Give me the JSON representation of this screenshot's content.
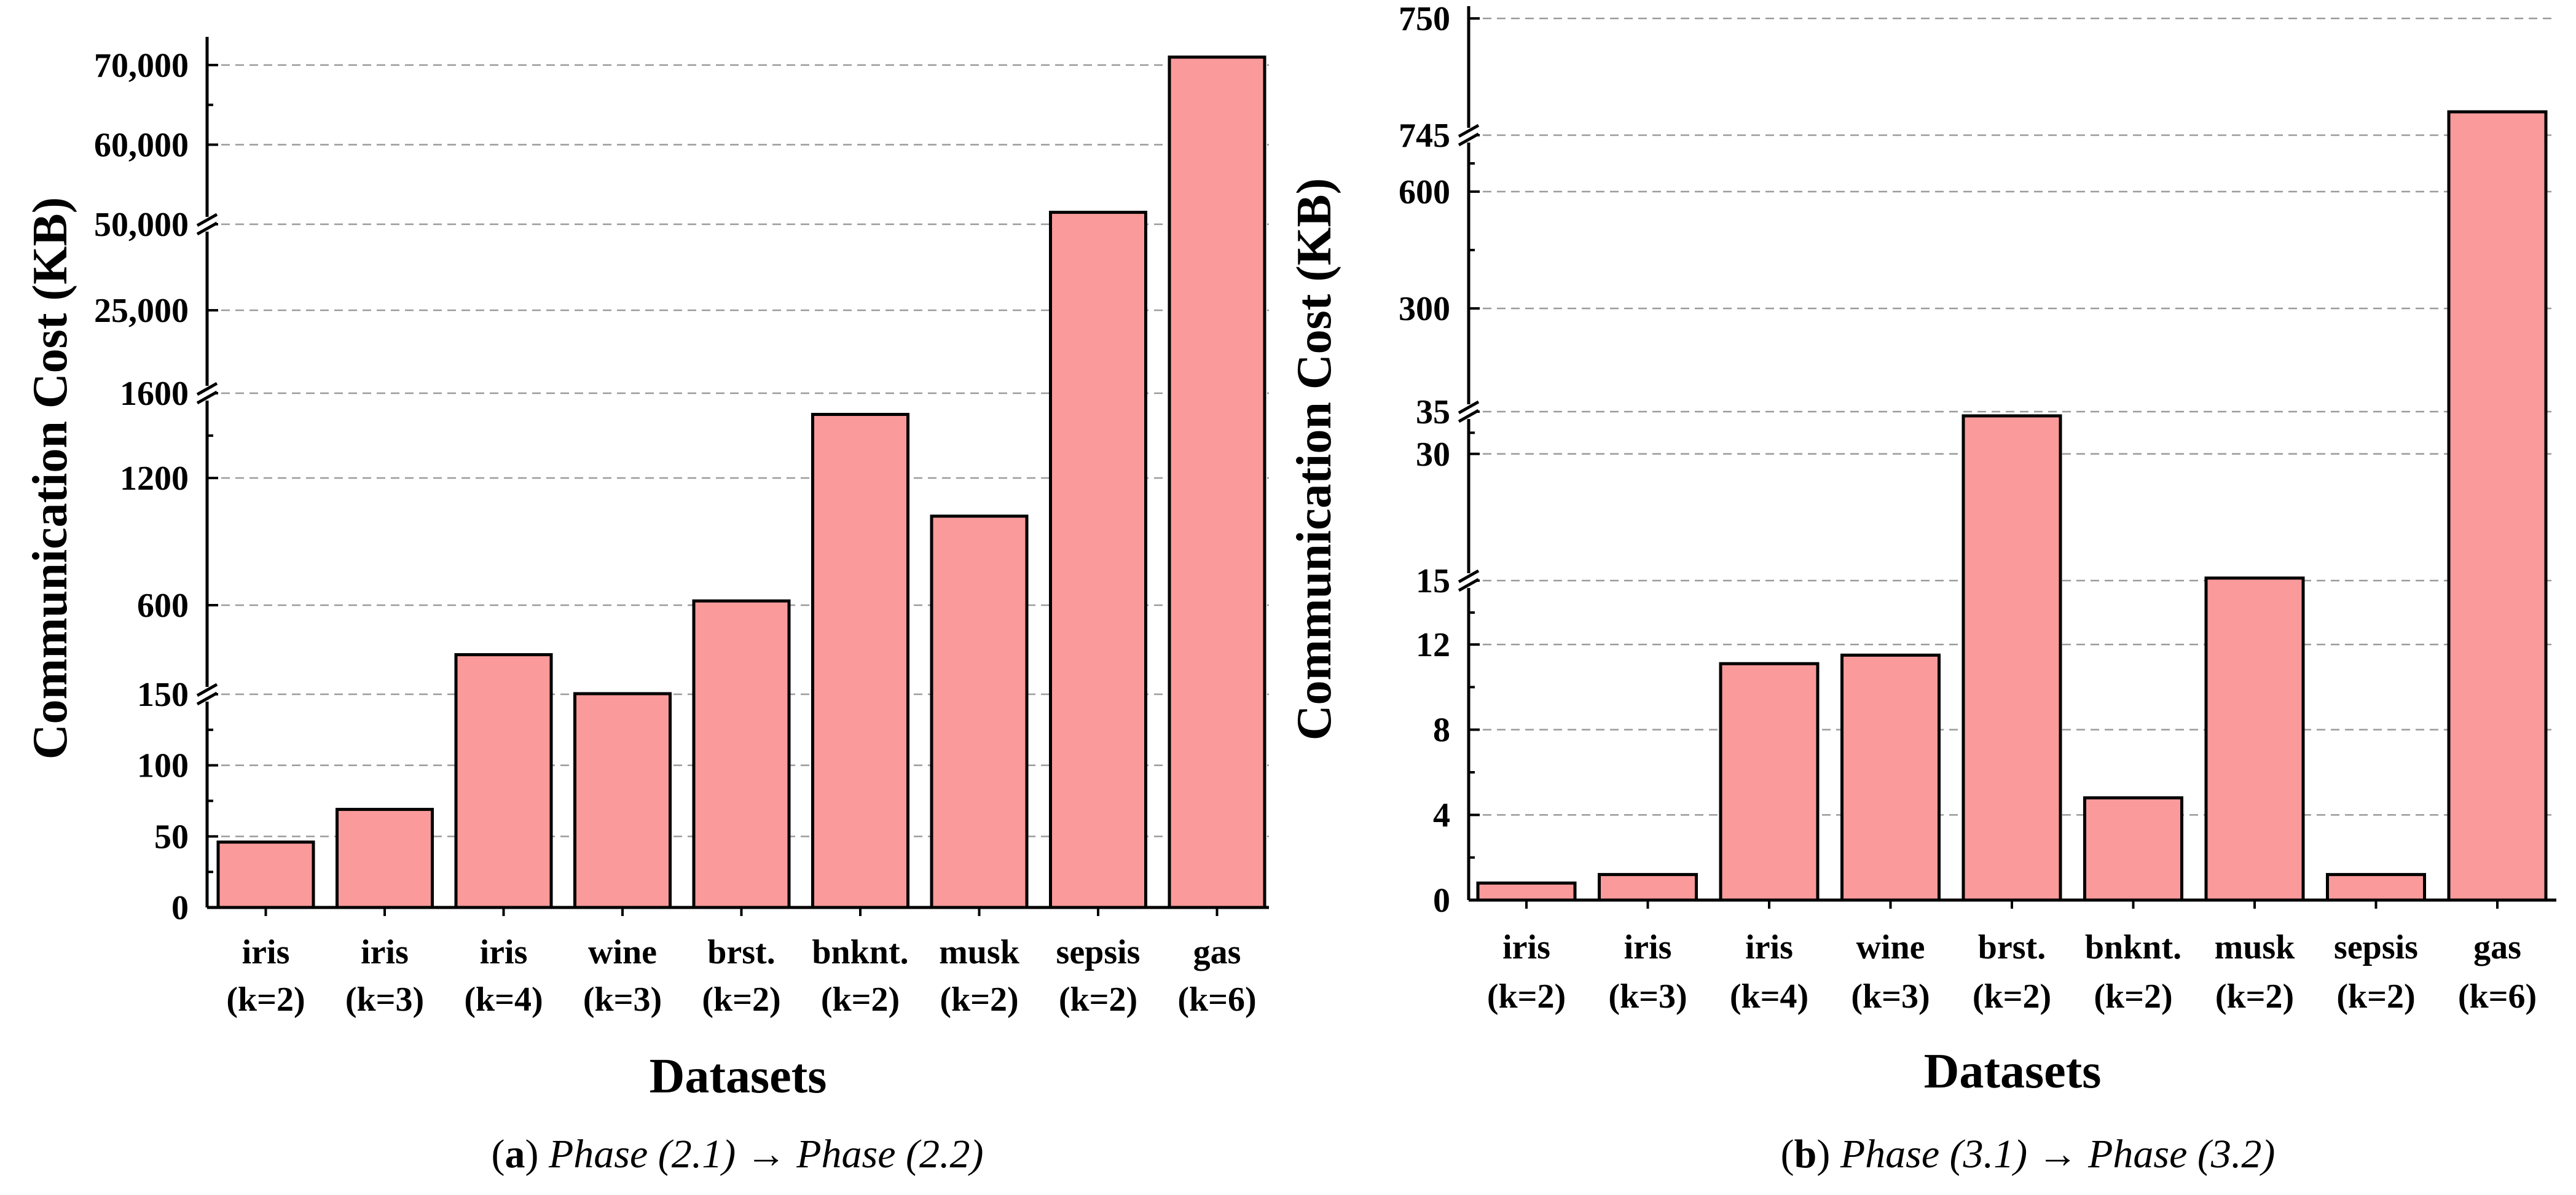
{
  "chart_data": [
    {
      "id": "a",
      "type": "bar",
      "caption": {
        "label": "a",
        "from": "Phase (2.1)",
        "arrow": "→",
        "to": "Phase (2.2)"
      },
      "xlabel": "Datasets",
      "ylabel": "Communication Cost (KB)",
      "categories": [
        [
          "iris",
          "(k=2)"
        ],
        [
          "iris",
          "(k=3)"
        ],
        [
          "iris",
          "(k=4)"
        ],
        [
          "wine",
          "(k=3)"
        ],
        [
          "brst.",
          "(k=2)"
        ],
        [
          "bnknt.",
          "(k=2)"
        ],
        [
          "musk",
          "(k=2)"
        ],
        [
          "sepsis",
          "(k=2)"
        ],
        [
          "gas",
          "(k=6)"
        ]
      ],
      "values": [
        46,
        69,
        350,
        153,
        620,
        1500,
        1020,
        51500,
        71000
      ],
      "axis_breaks": [
        {
          "from": 0,
          "to": 150,
          "ticks": [
            0,
            50,
            100,
            150
          ],
          "tick_labels": [
            "0",
            "50",
            "100",
            "150"
          ]
        },
        {
          "from": 150,
          "to": 600,
          "ticks": [
            600
          ],
          "tick_labels": [
            "600"
          ]
        },
        {
          "from": 600,
          "to": 1600,
          "ticks": [
            1200,
            1600
          ],
          "tick_labels": [
            "1200",
            "1600"
          ]
        },
        {
          "from": 1600,
          "to": 25000,
          "ticks": [
            25000
          ],
          "tick_labels": [
            "25,000"
          ]
        },
        {
          "from": 25000,
          "to": 50000,
          "ticks": [
            50000
          ],
          "tick_labels": [
            "50,000"
          ]
        },
        {
          "from": 50000,
          "to": 72000,
          "ticks": [
            60000,
            70000
          ],
          "tick_labels": [
            "60,000",
            "70,000"
          ]
        }
      ],
      "break_marks_at": [
        150,
        1600,
        50000
      ],
      "grid": true
    },
    {
      "id": "b",
      "type": "bar",
      "caption": {
        "label": "b",
        "from": "Phase (3.1)",
        "arrow": "→",
        "to": "Phase (3.2)"
      },
      "xlabel": "Datasets",
      "ylabel": "Communication Cost (KB)",
      "categories": [
        [
          "iris",
          "(k=2)"
        ],
        [
          "iris",
          "(k=3)"
        ],
        [
          "iris",
          "(k=4)"
        ],
        [
          "wine",
          "(k=3)"
        ],
        [
          "brst.",
          "(k=2)"
        ],
        [
          "bnknt.",
          "(k=2)"
        ],
        [
          "musk",
          "(k=2)"
        ],
        [
          "sepsis",
          "(k=2)"
        ],
        [
          "gas",
          "(k=6)"
        ]
      ],
      "values": [
        0.8,
        1.2,
        11.1,
        11.5,
        34.5,
        4.8,
        15.3,
        1.2,
        746
      ],
      "axis_breaks": [
        {
          "from": 0,
          "to": 15,
          "ticks": [
            0,
            4,
            8,
            12,
            15
          ],
          "tick_labels": [
            "0",
            "4",
            "8",
            "12",
            "15"
          ]
        },
        {
          "from": 15,
          "to": 35,
          "ticks": [
            30,
            35
          ],
          "tick_labels": [
            "30",
            "35"
          ]
        },
        {
          "from": 35,
          "to": 745,
          "ticks": [
            300,
            600,
            745
          ],
          "tick_labels": [
            "300",
            "600",
            "745"
          ]
        },
        {
          "from": 745,
          "to": 750,
          "ticks": [
            750
          ],
          "tick_labels": [
            "750"
          ]
        }
      ],
      "break_marks_at": [
        15,
        35,
        745
      ],
      "grid": true
    }
  ]
}
